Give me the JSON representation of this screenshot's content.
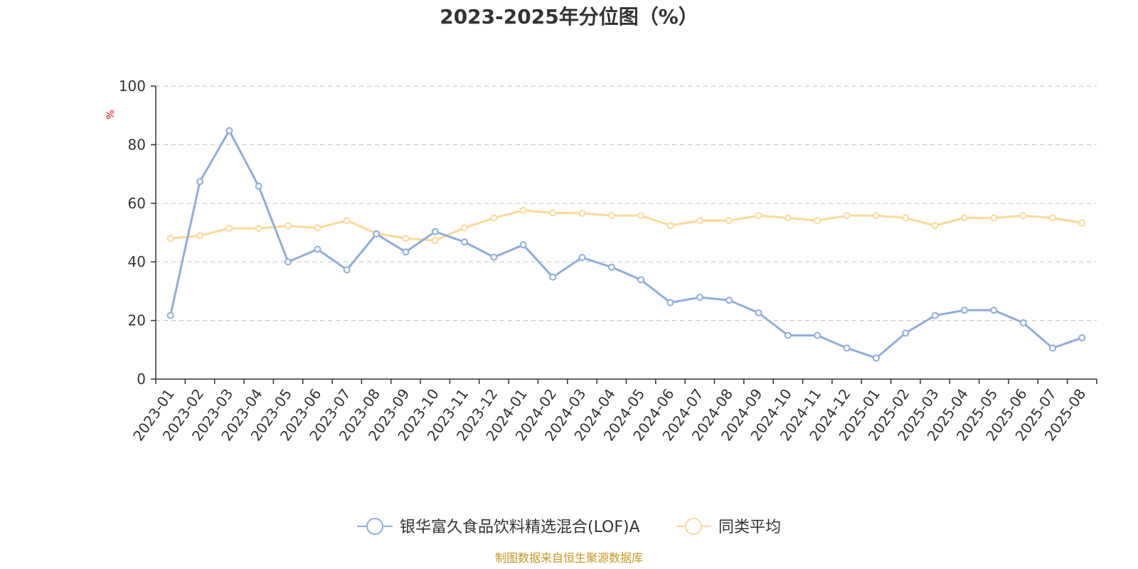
{
  "chart_data": {
    "type": "line",
    "title": "2023-2025年分位图（%）",
    "ylabel": "%",
    "xlabel": "",
    "ylim": [
      0,
      100
    ],
    "yticks": [
      0,
      20,
      40,
      60,
      80,
      100
    ],
    "grid": true,
    "legend_position": "bottom",
    "categories": [
      "2023-01",
      "2023-02",
      "2023-03",
      "2023-04",
      "2023-05",
      "2023-06",
      "2023-07",
      "2023-08",
      "2023-09",
      "2023-10",
      "2023-11",
      "2023-12",
      "2024-01",
      "2024-02",
      "2024-03",
      "2024-04",
      "2024-05",
      "2024-06",
      "2024-07",
      "2024-08",
      "2024-09",
      "2024-10",
      "2024-11",
      "2024-12",
      "2025-01",
      "2025-02",
      "2025-03",
      "2025-04",
      "2025-05",
      "2025-06",
      "2025-07",
      "2025-08"
    ],
    "series": [
      {
        "name": "银华富久食品饮料精选混合(LOF)A",
        "color": "#8eaedb",
        "values": [
          21.7,
          67.4,
          84.8,
          65.8,
          40.0,
          44.3,
          37.3,
          49.5,
          43.4,
          50.3,
          46.8,
          41.6,
          45.8,
          34.8,
          41.5,
          38.2,
          33.9,
          26.1,
          27.9,
          26.9,
          22.6,
          14.9,
          14.9,
          10.6,
          7.2,
          15.7,
          21.7,
          23.5,
          23.5,
          19.2,
          10.6,
          14.1
        ]
      },
      {
        "name": "同类平均",
        "color": "#fcd998",
        "values": [
          48.0,
          48.9,
          51.5,
          51.4,
          52.3,
          51.6,
          54.1,
          49.7,
          48.0,
          47.3,
          51.6,
          55.0,
          57.6,
          56.7,
          56.6,
          55.8,
          55.8,
          52.4,
          54.1,
          54.1,
          55.8,
          55.0,
          54.1,
          55.8,
          55.8,
          55.0,
          52.4,
          55.0,
          55.0,
          55.8,
          55.0,
          53.3
        ]
      }
    ]
  },
  "footer": {
    "source": "制图数据来自恒生聚源数据库"
  }
}
